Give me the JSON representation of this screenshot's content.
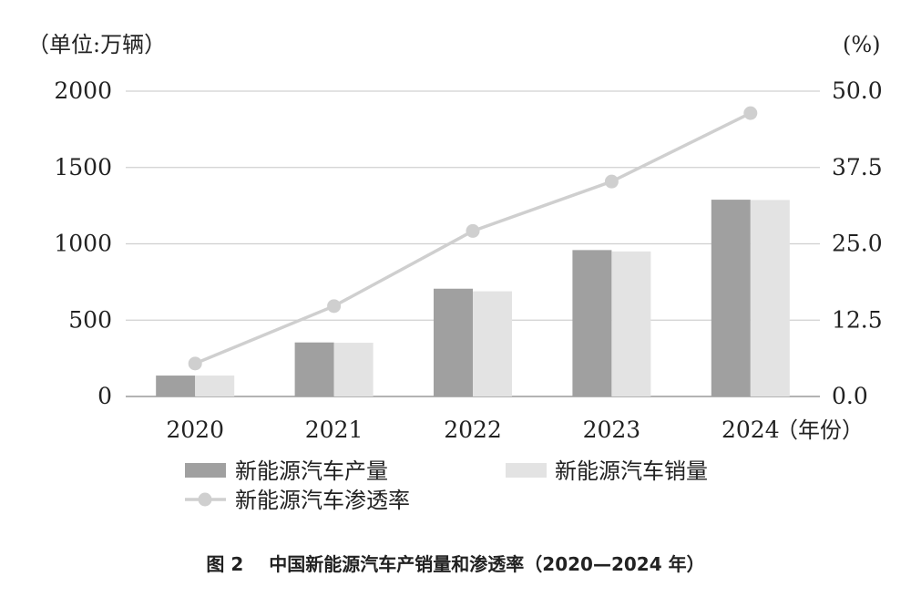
{
  "chart_data": {
    "type": "bar",
    "categories": [
      "2020",
      "2021",
      "2022",
      "2023",
      "2024"
    ],
    "series": [
      {
        "name": "新能源汽车产量",
        "kind": "bar",
        "axis": "left",
        "color": "#a0a0a0",
        "values": [
          137,
          354,
          706,
          959,
          1289
        ]
      },
      {
        "name": "新能源汽车销量",
        "kind": "bar",
        "axis": "left",
        "color": "#e3e3e3",
        "values": [
          137,
          352,
          689,
          950,
          1287
        ]
      },
      {
        "name": "新能源汽车渗透率",
        "kind": "line",
        "axis": "right",
        "color": "#cfcfcf",
        "values": [
          5.4,
          14.8,
          27.1,
          35.2,
          46.4
        ]
      }
    ],
    "y_left": {
      "unit_label": "（单位:万辆）",
      "ticks": [
        "0",
        "500",
        "1000",
        "1500",
        "2000"
      ],
      "range": [
        0,
        2000
      ]
    },
    "y_right": {
      "unit_label": "(%)",
      "ticks": [
        "0.0",
        "12.5",
        "25.0",
        "37.5",
        "50.0"
      ],
      "range": [
        0,
        50
      ]
    },
    "x_unit_label": "（年份）",
    "grid": true,
    "legend_placement": "bottom"
  },
  "caption": {
    "figure_number": "图 2",
    "title": "中国新能源汽车产销量和渗透率（2020—2024 年）"
  }
}
